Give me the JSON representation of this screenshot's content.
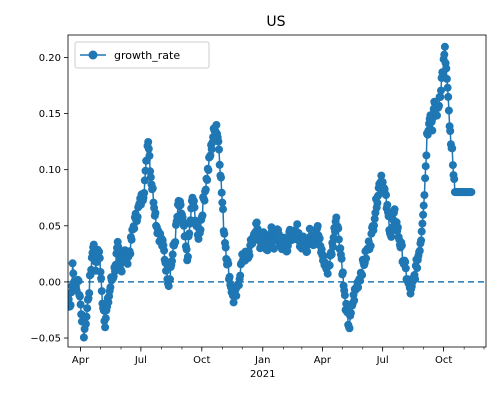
{
  "chart_data": {
    "type": "line",
    "title": "US",
    "xlabel": "",
    "ylabel": "",
    "x_axis_type": "date",
    "xlim": [
      "2020-03-13",
      "2021-12-04"
    ],
    "ylim": [
      -0.058,
      0.22
    ],
    "y_ticks": [
      -0.05,
      0.0,
      0.05,
      0.1,
      0.15,
      0.2
    ],
    "y_tick_labels": [
      "−0.05",
      "0.00",
      "0.05",
      "0.10",
      "0.15",
      "0.20"
    ],
    "x_ticks": [
      {
        "date": "2020-04-01",
        "label": "Apr"
      },
      {
        "date": "2020-07-01",
        "label": "Jul"
      },
      {
        "date": "2020-10-01",
        "label": "Oct"
      },
      {
        "date": "2021-01-01",
        "label": "Jan"
      },
      {
        "date": "2021-04-01",
        "label": "Apr"
      },
      {
        "date": "2021-07-01",
        "label": "Jul"
      },
      {
        "date": "2021-10-01",
        "label": "Oct"
      }
    ],
    "x_year_label": {
      "date": "2021-01-01",
      "label": "2021"
    },
    "reference_line": {
      "y": 0.0,
      "style": "dashed"
    },
    "grid": false,
    "legend": {
      "position": "upper-left",
      "entries": [
        "growth_rate"
      ]
    },
    "series": [
      {
        "name": "growth_rate",
        "color": "#1f77b4",
        "marker": "circle",
        "anchors": [
          [
            "2020-03-13",
            -0.015
          ],
          [
            "2020-03-17",
            -0.02
          ],
          [
            "2020-03-20",
            0.012
          ],
          [
            "2020-03-24",
            -0.01
          ],
          [
            "2020-03-28",
            0.005
          ],
          [
            "2020-04-01",
            -0.02
          ],
          [
            "2020-04-06",
            -0.045
          ],
          [
            "2020-04-10",
            -0.03
          ],
          [
            "2020-04-15",
            0.0
          ],
          [
            "2020-04-20",
            0.035
          ],
          [
            "2020-04-24",
            0.015
          ],
          [
            "2020-04-29",
            0.03
          ],
          [
            "2020-05-03",
            -0.01
          ],
          [
            "2020-05-08",
            -0.035
          ],
          [
            "2020-05-12",
            -0.02
          ],
          [
            "2020-05-17",
            0.0
          ],
          [
            "2020-05-22",
            0.01
          ],
          [
            "2020-05-27",
            0.03
          ],
          [
            "2020-06-01",
            0.01
          ],
          [
            "2020-06-05",
            0.03
          ],
          [
            "2020-06-10",
            0.02
          ],
          [
            "2020-06-15",
            0.03
          ],
          [
            "2020-06-20",
            0.05
          ],
          [
            "2020-06-25",
            0.06
          ],
          [
            "2020-06-30",
            0.07
          ],
          [
            "2020-07-05",
            0.08
          ],
          [
            "2020-07-08",
            0.095
          ],
          [
            "2020-07-12",
            0.13
          ],
          [
            "2020-07-16",
            0.095
          ],
          [
            "2020-07-20",
            0.075
          ],
          [
            "2020-07-25",
            0.05
          ],
          [
            "2020-07-30",
            0.04
          ],
          [
            "2020-08-04",
            0.03
          ],
          [
            "2020-08-08",
            0.015
          ],
          [
            "2020-08-12",
            0.0
          ],
          [
            "2020-08-17",
            0.02
          ],
          [
            "2020-08-22",
            0.04
          ],
          [
            "2020-08-27",
            0.07
          ],
          [
            "2020-09-01",
            0.06
          ],
          [
            "2020-09-05",
            0.04
          ],
          [
            "2020-09-09",
            0.02
          ],
          [
            "2020-09-13",
            0.05
          ],
          [
            "2020-09-17",
            0.075
          ],
          [
            "2020-09-21",
            0.06
          ],
          [
            "2020-09-25",
            0.04
          ],
          [
            "2020-09-29",
            0.05
          ],
          [
            "2020-10-03",
            0.07
          ],
          [
            "2020-10-08",
            0.09
          ],
          [
            "2020-10-13",
            0.11
          ],
          [
            "2020-10-18",
            0.13
          ],
          [
            "2020-10-23",
            0.14
          ],
          [
            "2020-10-27",
            0.12
          ],
          [
            "2020-10-30",
            0.09
          ],
          [
            "2020-11-03",
            0.05
          ],
          [
            "2020-11-08",
            0.02
          ],
          [
            "2020-11-13",
            0.0
          ],
          [
            "2020-11-18",
            -0.015
          ],
          [
            "2020-11-23",
            -0.01
          ],
          [
            "2020-11-28",
            0.01
          ],
          [
            "2020-12-03",
            0.025
          ],
          [
            "2020-12-08",
            0.02
          ],
          [
            "2020-12-13",
            0.03
          ],
          [
            "2020-12-18",
            0.04
          ],
          [
            "2020-12-23",
            0.05
          ],
          [
            "2020-12-28",
            0.035
          ],
          [
            "2021-01-03",
            0.04
          ],
          [
            "2021-01-08",
            0.03
          ],
          [
            "2021-01-13",
            0.045
          ],
          [
            "2021-01-18",
            0.035
          ],
          [
            "2021-01-23",
            0.05
          ],
          [
            "2021-01-28",
            0.03
          ],
          [
            "2021-02-02",
            0.04
          ],
          [
            "2021-02-07",
            0.03
          ],
          [
            "2021-02-12",
            0.045
          ],
          [
            "2021-02-17",
            0.035
          ],
          [
            "2021-02-22",
            0.05
          ],
          [
            "2021-02-27",
            0.03
          ],
          [
            "2021-03-04",
            0.04
          ],
          [
            "2021-03-09",
            0.03
          ],
          [
            "2021-03-14",
            0.045
          ],
          [
            "2021-03-19",
            0.035
          ],
          [
            "2021-03-24",
            0.05
          ],
          [
            "2021-03-29",
            0.03
          ],
          [
            "2021-04-03",
            0.02
          ],
          [
            "2021-04-08",
            0.01
          ],
          [
            "2021-04-13",
            0.02
          ],
          [
            "2021-04-18",
            0.04
          ],
          [
            "2021-04-22",
            0.06
          ],
          [
            "2021-04-26",
            0.04
          ],
          [
            "2021-04-30",
            0.02
          ],
          [
            "2021-05-04",
            -0.01
          ],
          [
            "2021-05-08",
            -0.03
          ],
          [
            "2021-05-12",
            -0.04
          ],
          [
            "2021-05-16",
            -0.02
          ],
          [
            "2021-05-20",
            -0.01
          ],
          [
            "2021-05-25",
            0.0
          ],
          [
            "2021-05-30",
            0.01
          ],
          [
            "2021-06-04",
            0.02
          ],
          [
            "2021-06-09",
            0.03
          ],
          [
            "2021-06-14",
            0.04
          ],
          [
            "2021-06-19",
            0.06
          ],
          [
            "2021-06-24",
            0.08
          ],
          [
            "2021-06-29",
            0.095
          ],
          [
            "2021-07-04",
            0.08
          ],
          [
            "2021-07-09",
            0.06
          ],
          [
            "2021-07-14",
            0.04
          ],
          [
            "2021-07-19",
            0.06
          ],
          [
            "2021-07-24",
            0.045
          ],
          [
            "2021-07-29",
            0.03
          ],
          [
            "2021-08-03",
            0.015
          ],
          [
            "2021-08-08",
            0.0
          ],
          [
            "2021-08-13",
            -0.01
          ],
          [
            "2021-08-18",
            0.005
          ],
          [
            "2021-08-23",
            0.02
          ],
          [
            "2021-08-28",
            0.04
          ],
          [
            "2021-09-02",
            0.08
          ],
          [
            "2021-09-06",
            0.13
          ],
          [
            "2021-09-10",
            0.15
          ],
          [
            "2021-09-14",
            0.14
          ],
          [
            "2021-09-18",
            0.16
          ],
          [
            "2021-09-22",
            0.15
          ],
          [
            "2021-09-26",
            0.17
          ],
          [
            "2021-09-30",
            0.19
          ],
          [
            "2021-10-03",
            0.205
          ],
          [
            "2021-10-06",
            0.18
          ],
          [
            "2021-10-09",
            0.15
          ],
          [
            "2021-10-12",
            0.12
          ],
          [
            "2021-10-15",
            0.11
          ],
          [
            "2021-10-18",
            0.08
          ],
          [
            "2021-10-24",
            0.08
          ],
          [
            "2021-10-31",
            0.08
          ],
          [
            "2021-11-07",
            0.08
          ],
          [
            "2021-11-12",
            0.08
          ]
        ]
      }
    ]
  }
}
